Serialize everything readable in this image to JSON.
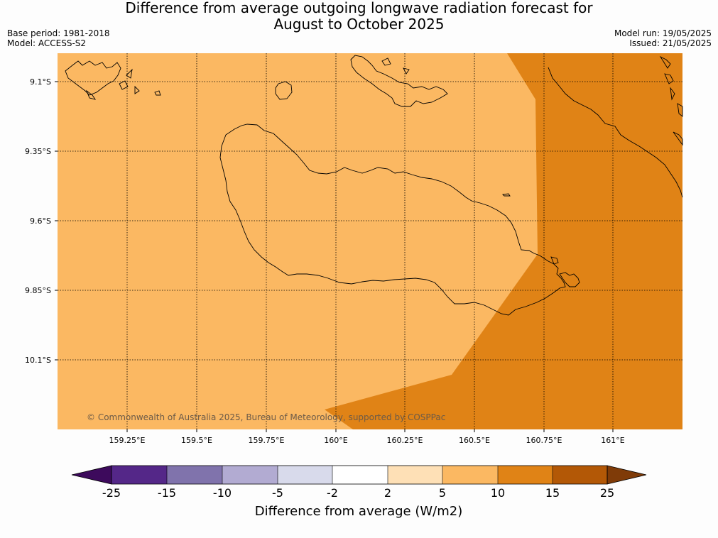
{
  "title": {
    "line1": "Difference from average outgoing longwave radiation forecast for",
    "line2": "August to October 2025"
  },
  "meta_left": {
    "base_period": "Base period: 1981-2018",
    "model": "Model: ACCESS-S2"
  },
  "meta_right": {
    "model_run": "Model run: 19/05/2025",
    "issued": "Issued: 21/05/2025"
  },
  "map": {
    "region": "Guadalcanal, Solomon Islands",
    "lat_labels": [
      "9.1°S",
      "9.35°S",
      "9.6°S",
      "9.85°S",
      "10.1°S"
    ],
    "lon_labels": [
      "159.25°E",
      "159.5°E",
      "159.75°E",
      "160°E",
      "160.25°E",
      "160.5°E",
      "160.75°E",
      "161°E"
    ],
    "copyright": "© Commonwealth of Australia 2025, Bureau of Meteorology, supported by COSPPac",
    "fill_classes": [
      {
        "range": "5 to 10",
        "color": "#fbb862"
      },
      {
        "range": "10 to 15",
        "color": "#e08316"
      }
    ]
  },
  "colorbar": {
    "title": "Difference from average (W/m2)",
    "ticks": [
      "-25",
      "-15",
      "-10",
      "-5",
      "-2",
      "2",
      "5",
      "10",
      "15",
      "25"
    ],
    "colors": [
      "#3d0a5c",
      "#542788",
      "#8073ac",
      "#b2abd2",
      "#d8daeb",
      "#ffffff",
      "#fee0b6",
      "#fbb862",
      "#e08316",
      "#b35806",
      "#7f3b08"
    ]
  }
}
